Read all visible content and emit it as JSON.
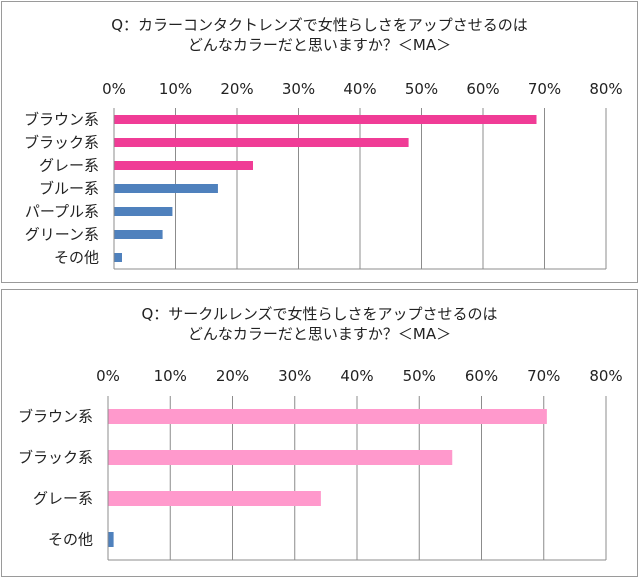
{
  "chart_data": [
    {
      "type": "bar",
      "orientation": "horizontal",
      "title_lines": [
        "Q：カラーコンタクトレンズで女性らしさをアップさせるのは",
        "どんなカラーだと思いますか？＜MA＞"
      ],
      "categories": [
        "ブラウン系",
        "ブラック系",
        "グレー系",
        "ブルー系",
        "パープル系",
        "グリーン系",
        "その他"
      ],
      "values": [
        68.7,
        47.9,
        22.6,
        16.9,
        9.5,
        7.9,
        1.3
      ],
      "bar_colors": [
        "#f03c96",
        "#f03c96",
        "#f03c96",
        "#4f81bd",
        "#4f81bd",
        "#4f81bd",
        "#4f81bd"
      ],
      "xlim": [
        0,
        80
      ],
      "ticks": [
        "0%",
        "10%",
        "20%",
        "30%",
        "40%",
        "50%",
        "60%",
        "70%",
        "80%"
      ],
      "grid": true,
      "axis_position": "top"
    },
    {
      "type": "bar",
      "orientation": "horizontal",
      "title_lines": [
        "Q：サークルレンズで女性らしさをアップさせるのは",
        "どんなカラーだと思いますか？＜MA＞"
      ],
      "categories": [
        "ブラウン系",
        "ブラック系",
        "グレー系",
        "その他"
      ],
      "values": [
        70.5,
        55.3,
        34.2,
        0.9
      ],
      "bar_colors": [
        "#ff99cc",
        "#ff99cc",
        "#ff99cc",
        "#4f81bd"
      ],
      "xlim": [
        0,
        80
      ],
      "ticks": [
        "0%",
        "10%",
        "20%",
        "30%",
        "40%",
        "50%",
        "60%",
        "70%",
        "80%"
      ],
      "grid": true,
      "axis_position": "top"
    }
  ]
}
